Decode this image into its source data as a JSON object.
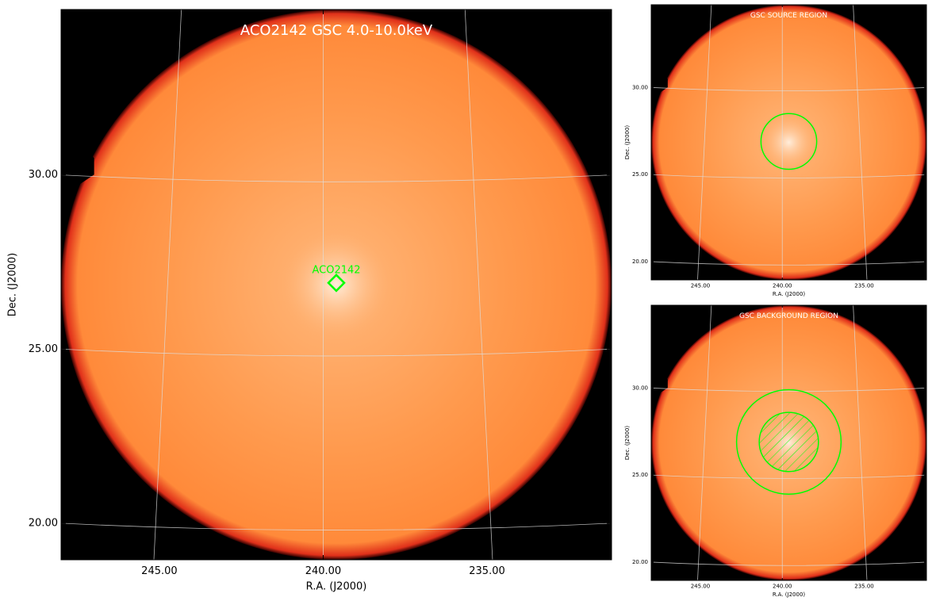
{
  "chart_data": [
    {
      "type": "image",
      "title": "ACO2142 GSC 4.0-10.0keV",
      "xlabel": "R.A. (J2000)",
      "ylabel": "Dec. (J2000)",
      "xlim": [
        248.0,
        231.2
      ],
      "ylim": [
        18.95,
        34.75
      ],
      "xticks": [
        {
          "value": 245,
          "label": "245.00"
        },
        {
          "value": 240,
          "label": "240.00"
        },
        {
          "value": 235,
          "label": "235.00"
        }
      ],
      "yticks": [
        {
          "value": 20,
          "label": "20.00"
        },
        {
          "value": 25,
          "label": "25.00"
        },
        {
          "value": 30,
          "label": "30.00"
        }
      ],
      "grid": true,
      "color": "#00ff00",
      "annotations": [
        {
          "label": "ACO2142",
          "ra": 239.6,
          "dec": 26.9
        }
      ]
    },
    {
      "type": "image",
      "title": "GSC SOURCE REGION",
      "xlabel": "R.A. (J2000)",
      "ylabel": "Dec. (J2000)",
      "xlim": [
        248.0,
        231.2
      ],
      "ylim": [
        18.95,
        34.75
      ],
      "xticks": [
        {
          "value": 245,
          "label": "245.00"
        },
        {
          "value": 240,
          "label": "240.00"
        },
        {
          "value": 235,
          "label": "235.00"
        }
      ],
      "yticks": [
        {
          "value": 20,
          "label": "20.00"
        },
        {
          "value": 25,
          "label": "25.00"
        },
        {
          "value": 30,
          "label": "30.00"
        }
      ],
      "grid": true,
      "color": "#00ff00",
      "regions": [
        {
          "ra": 239.6,
          "dec": 26.9,
          "radius": 1.6,
          "hatch": false
        }
      ]
    },
    {
      "type": "image",
      "title": "GSC BACKGROUND REGION",
      "xlabel": "R.A. (J2000)",
      "ylabel": "Dec. (J2000)",
      "xlim": [
        248.0,
        231.2
      ],
      "ylim": [
        18.95,
        34.75
      ],
      "xticks": [
        {
          "value": 245,
          "label": "245.00"
        },
        {
          "value": 240,
          "label": "240.00"
        },
        {
          "value": 235,
          "label": "235.00"
        }
      ],
      "yticks": [
        {
          "value": 20,
          "label": "20.00"
        },
        {
          "value": 25,
          "label": "25.00"
        },
        {
          "value": 30,
          "label": "30.00"
        }
      ],
      "grid": true,
      "color": "#00ff00",
      "regions": [
        {
          "ra": 239.6,
          "dec": 26.9,
          "radius": 3.0,
          "hatch": false
        },
        {
          "ra": 239.6,
          "dec": 26.9,
          "radius": 1.7,
          "hatch": true
        }
      ]
    }
  ]
}
